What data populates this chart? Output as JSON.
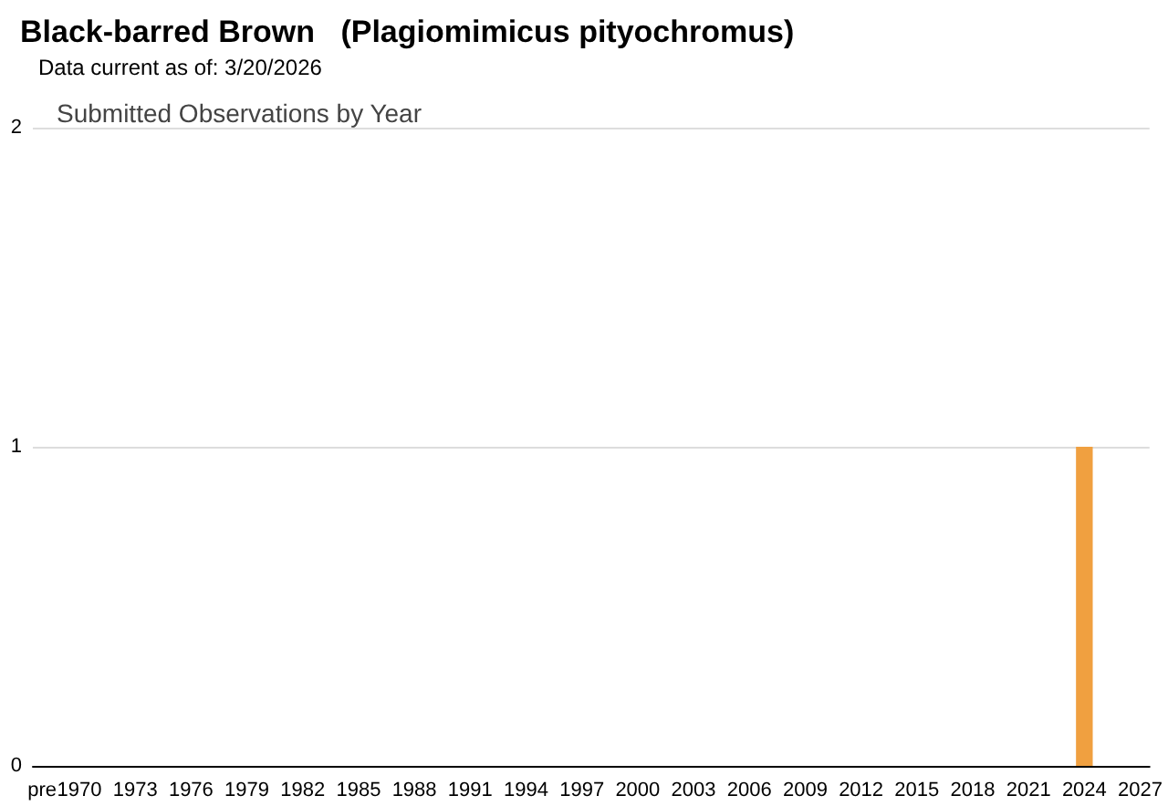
{
  "chart_data": {
    "type": "bar",
    "title": "Black-barred Brown   (Plagiomimicus pityochromus)",
    "subtitle": "Data current as of: 3/20/2026",
    "annotations": [
      "Submitted Observations by Year"
    ],
    "categories": [
      "pre",
      null,
      "1970",
      null,
      null,
      "1973",
      null,
      null,
      "1976",
      null,
      null,
      "1979",
      null,
      null,
      "1982",
      null,
      null,
      "1985",
      null,
      null,
      "1988",
      null,
      null,
      "1991",
      null,
      null,
      "1994",
      null,
      null,
      "1997",
      null,
      null,
      "2000",
      null,
      null,
      "2003",
      null,
      null,
      "2006",
      null,
      null,
      "2009",
      null,
      null,
      "2012",
      null,
      null,
      "2015",
      null,
      null,
      "2018",
      null,
      null,
      "2021",
      null,
      null,
      "2024",
      null,
      null,
      "2027"
    ],
    "values": [
      0,
      0,
      0,
      0,
      0,
      0,
      0,
      0,
      0,
      0,
      0,
      0,
      0,
      0,
      0,
      0,
      0,
      0,
      0,
      0,
      0,
      0,
      0,
      0,
      0,
      0,
      0,
      0,
      0,
      0,
      0,
      0,
      0,
      0,
      0,
      0,
      0,
      0,
      0,
      0,
      0,
      0,
      0,
      0,
      0,
      0,
      0,
      0,
      0,
      0,
      0,
      0,
      0,
      0,
      0,
      0,
      1,
      0,
      0,
      0
    ],
    "color": "#f0a040",
    "ylim": [
      0,
      2
    ],
    "yticks": [
      0,
      1,
      2
    ],
    "grid": "y"
  }
}
